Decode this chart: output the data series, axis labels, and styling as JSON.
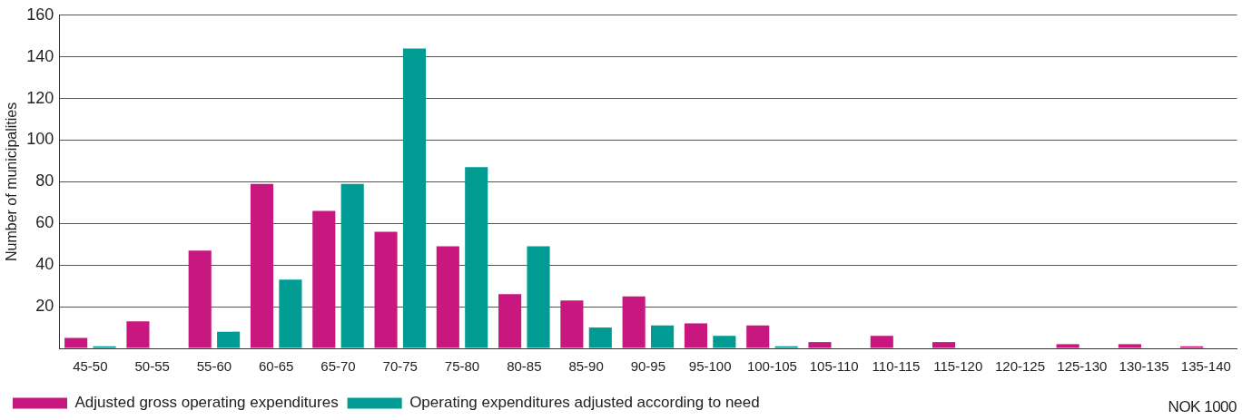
{
  "chart_data": {
    "type": "bar",
    "ylabel": "Number of municipalities",
    "xlabel": "NOK 1000",
    "categories": [
      "45-50",
      "50-55",
      "55-60",
      "60-65",
      "65-70",
      "70-75",
      "75-80",
      "80-85",
      "85-90",
      "90-95",
      "95-100",
      "100-105",
      "105-110",
      "110-115",
      "115-120",
      "120-125",
      "125-130",
      "130-135",
      "135-140"
    ],
    "series": [
      {
        "name": "Adjusted gross operating expenditures",
        "color": "#c8177f",
        "values": [
          5,
          13,
          47,
          79,
          66,
          56,
          49,
          26,
          23,
          25,
          12,
          11,
          3,
          6,
          3,
          0,
          2,
          2,
          1
        ]
      },
      {
        "name": "Operating expenditures adjusted according to need",
        "color": "#009b93",
        "values": [
          1,
          0,
          8,
          33,
          79,
          144,
          87,
          49,
          10,
          11,
          6,
          1,
          0,
          0,
          0,
          0,
          0,
          0,
          0
        ]
      }
    ],
    "ylim": [
      0,
      160
    ],
    "yticks": [
      {
        "value": 0,
        "label": null
      },
      20,
      40,
      60,
      80,
      100,
      120,
      140,
      160
    ],
    "grid": "y",
    "legend": "bottom"
  }
}
